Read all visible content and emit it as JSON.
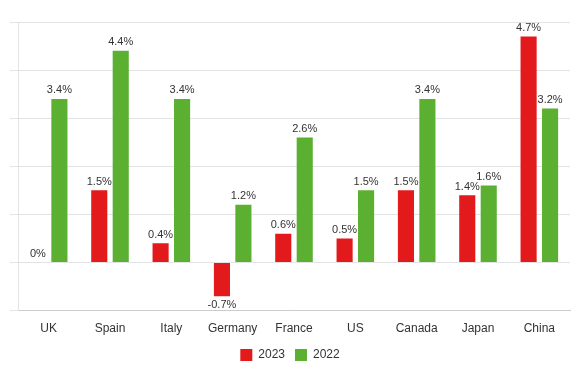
{
  "chart_data": {
    "type": "bar",
    "categories": [
      "UK",
      "Spain",
      "Italy",
      "Germany",
      "France",
      "US",
      "Canada",
      "Japan",
      "China"
    ],
    "series": [
      {
        "name": "2023",
        "color": "#e31a1c",
        "values": [
          0,
          1.5,
          0.4,
          -0.7,
          0.6,
          0.5,
          1.5,
          1.4,
          4.7
        ],
        "value_labels": [
          "0%",
          "1.5%",
          "0.4%",
          "-0.7%",
          "0.6%",
          "0.5%",
          "1.5%",
          "1.4%",
          "4.7%"
        ]
      },
      {
        "name": "2022",
        "color": "#5cb031",
        "values": [
          3.4,
          4.4,
          3.4,
          1.2,
          2.6,
          1.5,
          3.4,
          1.6,
          3.2
        ],
        "value_labels": [
          "3.4%",
          "4.4%",
          "3.4%",
          "1.2%",
          "2.6%",
          "1.5%",
          "3.4%",
          "1.6%",
          "3.2%"
        ]
      }
    ],
    "ylim": [
      -1,
      5
    ],
    "yticks": [
      -1,
      0,
      1,
      2,
      3,
      4,
      5
    ],
    "grid": true,
    "data_labels": true,
    "tick_labels": "x",
    "legend": "bottom"
  }
}
